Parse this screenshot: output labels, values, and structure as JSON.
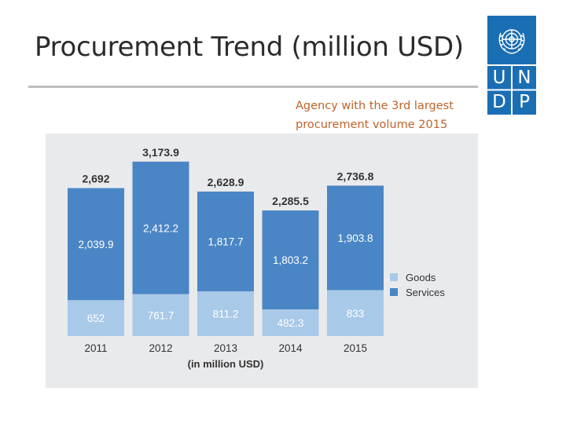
{
  "slide": {
    "title": "Procurement Trend (million USD)",
    "note_lines": [
      "Agency with the 3rd largest",
      "procurement volume 2015"
    ]
  },
  "logo": {
    "letters": [
      "U",
      "N",
      "D",
      "P"
    ],
    "color": "#1a6eb4"
  },
  "colors": {
    "title_text": "#2b2b2b",
    "note_text": "#c0622a",
    "services_bar": "#4a86c5",
    "goods_bar": "#a9c9e8",
    "panel_bg": "#e9eaec"
  },
  "chart_data": {
    "type": "bar",
    "stacked": true,
    "categories": [
      "2011",
      "2012",
      "2013",
      "2014",
      "2015"
    ],
    "series": [
      {
        "name": "Goods",
        "values": [
          652,
          761.7,
          811.2,
          482.3,
          833
        ],
        "labels": [
          "652",
          "761.7",
          "811.2",
          "482.3",
          "833"
        ],
        "color": "#a9c9e8"
      },
      {
        "name": "Services",
        "values": [
          2039.9,
          2412.2,
          1817.7,
          1803.2,
          1903.8
        ],
        "labels": [
          "2,039.9",
          "2,412.2",
          "1,817.7",
          "1,803.2",
          "1,903.8"
        ],
        "color": "#4a86c5"
      }
    ],
    "totals": [
      2692,
      3173.9,
      2628.9,
      2285.5,
      2736.8
    ],
    "total_labels": [
      "2,692",
      "3,173.9",
      "2,628.9",
      "2,285.5",
      "2,736.8"
    ],
    "xlabel": "(in million USD)",
    "ylim": [
      0,
      3300
    ],
    "legend_position": "right",
    "grid": false
  }
}
